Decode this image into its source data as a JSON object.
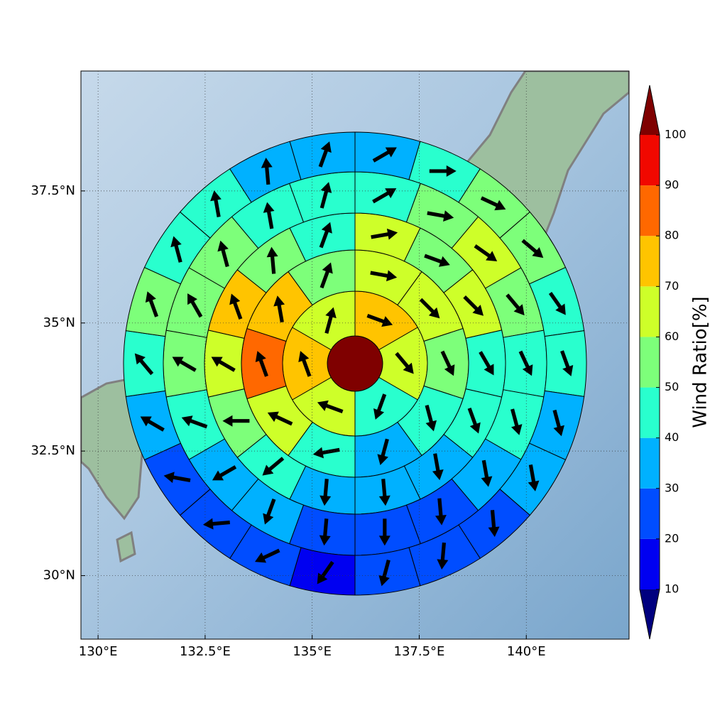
{
  "chart_data": {
    "type": "polar_sector_map",
    "xlim": [
      129.6,
      142.4
    ],
    "ylim": [
      28.7,
      39.7
    ],
    "projection": "mercator",
    "grid": true,
    "xticks": [
      {
        "value": 130,
        "label": "130°E"
      },
      {
        "value": 132.5,
        "label": "132.5°E"
      },
      {
        "value": 135,
        "label": "135°E"
      },
      {
        "value": 137.5,
        "label": "137.5°E"
      },
      {
        "value": 140,
        "label": "140°E"
      }
    ],
    "yticks": [
      {
        "value": 30,
        "label": "30°N"
      },
      {
        "value": 32.5,
        "label": "32.5°N"
      },
      {
        "value": 35,
        "label": "35°N"
      },
      {
        "value": 37.5,
        "label": "37.5°N"
      }
    ],
    "center_value": 105,
    "rings": [
      {
        "values": [
          75,
          65,
          45,
          65,
          75,
          65
        ],
        "directions": [
          110,
          140,
          200,
          290,
          340,
          15
        ]
      },
      {
        "values": [
          65,
          65,
          55,
          45,
          35,
          45,
          65,
          85,
          75,
          55
        ],
        "directions": [
          100,
          135,
          155,
          165,
          195,
          260,
          295,
          340,
          350,
          20
        ]
      },
      {
        "values": [
          65,
          55,
          65,
          45,
          45,
          35,
          35,
          35,
          45,
          55,
          65,
          75,
          55,
          45
        ],
        "directions": [
          80,
          110,
          135,
          150,
          160,
          170,
          175,
          185,
          230,
          270,
          300,
          340,
          355,
          20
        ]
      },
      {
        "values": [
          45,
          55,
          65,
          55,
          45,
          45,
          35,
          25,
          25,
          25,
          35,
          35,
          45,
          55,
          55,
          55,
          45,
          45
        ],
        "directions": [
          60,
          100,
          125,
          140,
          155,
          165,
          170,
          175,
          180,
          185,
          200,
          240,
          290,
          300,
          330,
          345,
          350,
          15
        ]
      },
      {
        "values": [
          35,
          45,
          55,
          55,
          45,
          45,
          35,
          35,
          25,
          25,
          25,
          15,
          25,
          25,
          25,
          35,
          45,
          55,
          45,
          45,
          35,
          35
        ],
        "directions": [
          60,
          90,
          115,
          130,
          145,
          160,
          165,
          170,
          175,
          185,
          195,
          215,
          245,
          265,
          280,
          300,
          320,
          340,
          345,
          350,
          355,
          20
        ]
      }
    ],
    "colorbar": {
      "label": "Wind Ratio[%]",
      "ticks": [
        10,
        20,
        30,
        40,
        50,
        60,
        70,
        80,
        90,
        100
      ],
      "colors": [
        "#00007f",
        "#0000f1",
        "#004dff",
        "#00b1ff",
        "#29ffce",
        "#7dff7a",
        "#ceff29",
        "#ffc400",
        "#ff6800",
        "#f10800",
        "#7f0000"
      ],
      "extend": "both"
    },
    "arrow_color": "#000000"
  }
}
